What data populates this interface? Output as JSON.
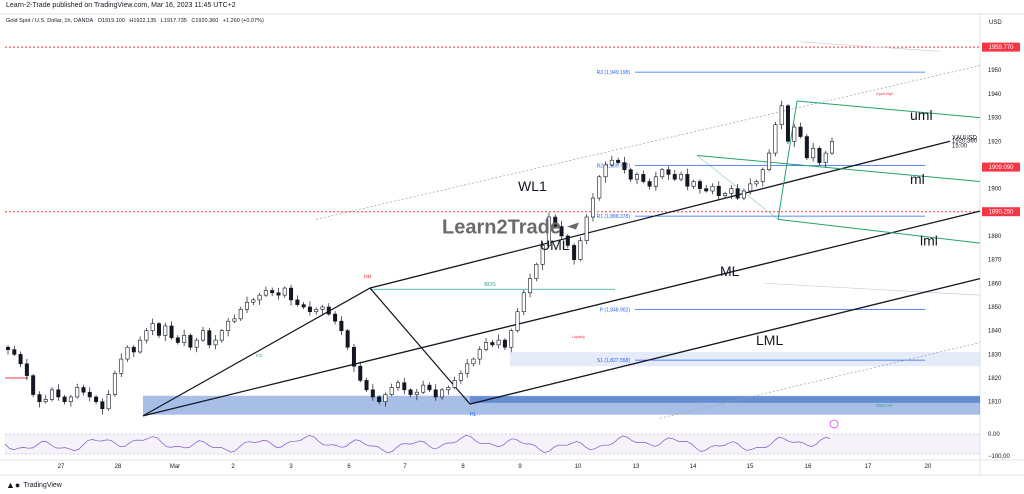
{
  "publisher_line": "Learn-2-Trade published on TradingView.com, Mar 16, 2023 11:45 UTC+2",
  "symbol_line": {
    "name": "Gold Spot / U.S. Dollar, 1h, OANDA",
    "open": "O1919.100",
    "high": "H1922.135",
    "low": "L1917.735",
    "close": "C1920.360",
    "change": "+1.260 (+0.07%)"
  },
  "currency": "USD",
  "footer_brand": "TradingView",
  "colors": {
    "candle": "#131722",
    "pivot_line": "#2962ff",
    "dotted_red": "#f23645",
    "channel_green": "#26a269",
    "support_zone": "#3b6fc7",
    "rsi_line": "#7e57c2"
  },
  "chart_data": {
    "type": "candlestick",
    "symbol": "XAUUSD",
    "timeframe": "1h",
    "ylim": [
      1801,
      1967
    ],
    "y_ticks": [
      1810,
      1820,
      1830,
      1840,
      1850,
      1860,
      1870,
      1880,
      1890,
      1900,
      1910,
      1920,
      1930,
      1940,
      1950
    ],
    "x_tick_labels": [
      "27",
      "28",
      "Mar",
      "2",
      "3",
      "6",
      "7",
      "8",
      "9",
      "10",
      "13",
      "14",
      "15",
      "16",
      "17",
      "20"
    ],
    "price_badges": [
      {
        "label": "1959.770",
        "value": 1959.77,
        "style": "red"
      },
      {
        "label": "1920.360",
        "value": 1920.36,
        "style": "plain"
      },
      {
        "label": "XAUUSD",
        "value": 1921.5,
        "style": "plain"
      },
      {
        "label": "15:00",
        "value": 1918.3,
        "style": "plain"
      },
      {
        "label": "1909.090",
        "value": 1909.09,
        "style": "red"
      },
      {
        "label": "1890.250",
        "value": 1890.25,
        "style": "red"
      }
    ],
    "pivot_levels": [
      {
        "label": "R3 (1,949.198)",
        "value": 1949.198
      },
      {
        "label": "R2 (1,909.722)",
        "value": 1909.722
      },
      {
        "label": "R1 (1,888.378)",
        "value": 1888.378
      },
      {
        "label": "P (1,848.902)",
        "value": 1848.902
      },
      {
        "label": "S1 (1,827.558)",
        "value": 1827.558
      }
    ],
    "annotations": {
      "wl1": "WL1",
      "uml_upper": "uml",
      "ml_upper": "ml",
      "lml_upper": "lml",
      "uml_lower": "UML",
      "ml_lower": "ML",
      "lml_lower": "LML",
      "bos": "BOS",
      "hh": "HH",
      "hl": "HL",
      "watermark": "Learn2Trade",
      "small_marks": [
        "EQL",
        "Equal High",
        "Equal Low",
        "Liquidity"
      ]
    },
    "close_path": [
      1832,
      1830,
      1826,
      1821,
      1813,
      1810,
      1811,
      1815,
      1812,
      1810,
      1812,
      1816,
      1814,
      1812,
      1810,
      1807,
      1813,
      1822,
      1828,
      1833,
      1831,
      1836,
      1840,
      1843,
      1838,
      1842,
      1837,
      1835,
      1838,
      1833,
      1836,
      1840,
      1834,
      1836,
      1840,
      1844,
      1845,
      1849,
      1852,
      1853,
      1855,
      1857,
      1856,
      1855,
      1858,
      1853,
      1851,
      1850,
      1848,
      1849,
      1850,
      1847,
      1844,
      1840,
      1833,
      1825,
      1819,
      1815,
      1812,
      1810,
      1813,
      1816,
      1818,
      1815,
      1813,
      1814,
      1817,
      1815,
      1812,
      1815,
      1816,
      1819,
      1822,
      1826,
      1828,
      1832,
      1835,
      1834,
      1836,
      1833,
      1840,
      1848,
      1856,
      1862,
      1868,
      1876,
      1888,
      1884,
      1880,
      1876,
      1870,
      1878,
      1888,
      1896,
      1905,
      1910,
      1912,
      1911,
      1908,
      1904,
      1906,
      1903,
      1901,
      1905,
      1908,
      1906,
      1904,
      1906,
      1901,
      1903,
      1900,
      1899,
      1901,
      1897,
      1898,
      1900,
      1896,
      1899,
      1902,
      1903,
      1908,
      1915,
      1927,
      1935,
      1920,
      1926,
      1922,
      1913,
      1917,
      1911,
      1915,
      1920
    ],
    "rsi": {
      "ylim": [
        -100,
        0
      ],
      "ticks": [
        0,
        -100
      ]
    }
  }
}
